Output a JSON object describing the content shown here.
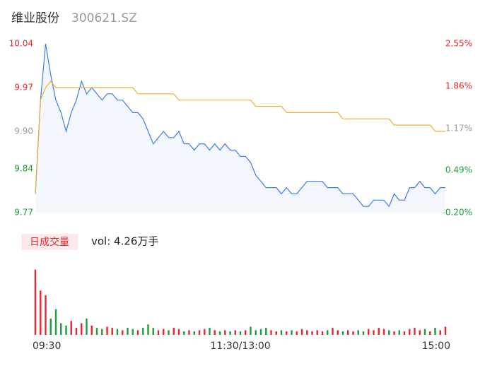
{
  "header": {
    "name": "维业股份",
    "code": "300621.SZ"
  },
  "chart_data": {
    "type": "intraday",
    "x": [
      0,
      3,
      6,
      9,
      12,
      15,
      18,
      21,
      24,
      27,
      30,
      33,
      36,
      39,
      42,
      45,
      48,
      51,
      54,
      57,
      60,
      63,
      66,
      69,
      72,
      75,
      78,
      81,
      84,
      87,
      90,
      93,
      96,
      99,
      102,
      105,
      108,
      111,
      114,
      117,
      120,
      123,
      126,
      129,
      132,
      135,
      138,
      141,
      144,
      147,
      150,
      153,
      156,
      159,
      162,
      165,
      168,
      171,
      174,
      177,
      180,
      183,
      186,
      189,
      192,
      195,
      198,
      201,
      204,
      207,
      210,
      213,
      216,
      219,
      222,
      225,
      228,
      231,
      234,
      237,
      240
    ],
    "xlim": [
      0,
      240
    ],
    "xticks": [
      {
        "value": 0,
        "label": "09:30"
      },
      {
        "value": 120,
        "label": "11:30/13:00"
      },
      {
        "value": 240,
        "label": "15:00"
      }
    ],
    "ylim": [
      9.77,
      10.04
    ],
    "yticks": [
      9.77,
      9.84,
      {
        "value": 9.9,
        "label": "9.90"
      },
      9.97,
      10.04
    ],
    "y2lim": [
      -0.2,
      2.55
    ],
    "y2ticks": [
      {
        "value": -0.2,
        "label": "-0.20%"
      },
      {
        "value": 0.49,
        "label": "0.49%"
      },
      {
        "value": 1.17,
        "label": "1.17%"
      },
      {
        "value": 1.86,
        "label": "1.86%"
      },
      {
        "value": 2.55,
        "label": "2.55%"
      }
    ],
    "price": {
      "color": "#3a7fe0",
      "values": [
        9.8,
        9.95,
        10.04,
        9.99,
        9.95,
        9.93,
        9.9,
        9.93,
        9.95,
        9.98,
        9.96,
        9.97,
        9.96,
        9.95,
        9.96,
        9.96,
        9.95,
        9.95,
        9.94,
        9.93,
        9.93,
        9.92,
        9.9,
        9.88,
        9.89,
        9.9,
        9.89,
        9.89,
        9.9,
        9.88,
        9.88,
        9.87,
        9.88,
        9.88,
        9.87,
        9.88,
        9.87,
        9.88,
        9.87,
        9.87,
        9.86,
        9.86,
        9.85,
        9.83,
        9.82,
        9.81,
        9.81,
        9.81,
        9.8,
        9.81,
        9.8,
        9.8,
        9.81,
        9.82,
        9.82,
        9.82,
        9.82,
        9.81,
        9.81,
        9.81,
        9.8,
        9.8,
        9.8,
        9.79,
        9.78,
        9.78,
        9.79,
        9.79,
        9.79,
        9.78,
        9.8,
        9.79,
        9.79,
        9.81,
        9.81,
        9.82,
        9.81,
        9.81,
        9.8,
        9.81,
        9.81
      ]
    },
    "average": {
      "color": "#f0b030",
      "values": [
        9.8,
        9.95,
        9.97,
        9.98,
        9.97,
        9.97,
        9.97,
        9.97,
        9.97,
        9.97,
        9.97,
        9.97,
        9.97,
        9.97,
        9.97,
        9.97,
        9.97,
        9.97,
        9.97,
        9.97,
        9.96,
        9.96,
        9.96,
        9.96,
        9.96,
        9.96,
        9.96,
        9.96,
        9.95,
        9.95,
        9.95,
        9.95,
        9.95,
        9.95,
        9.95,
        9.95,
        9.95,
        9.95,
        9.95,
        9.95,
        9.95,
        9.95,
        9.95,
        9.94,
        9.94,
        9.94,
        9.94,
        9.94,
        9.94,
        9.93,
        9.93,
        9.93,
        9.93,
        9.93,
        9.93,
        9.93,
        9.93,
        9.93,
        9.93,
        9.93,
        9.92,
        9.92,
        9.92,
        9.92,
        9.92,
        9.92,
        9.92,
        9.92,
        9.92,
        9.92,
        9.91,
        9.91,
        9.91,
        9.91,
        9.91,
        9.91,
        9.91,
        9.91,
        9.9,
        9.9,
        9.9
      ]
    },
    "up_color": "#e8262c",
    "down_color": "#1a9e3a",
    "flat_color": "#999999",
    "volume": {
      "title": "日成交量",
      "summary": "vol: 4.26万手",
      "ylim": [
        0,
        3000
      ],
      "values": [
        2800,
        1900,
        1700,
        700,
        1100,
        500,
        400,
        600,
        300,
        500,
        700,
        400,
        300,
        250,
        350,
        300,
        250,
        200,
        300,
        250,
        200,
        300,
        450,
        300,
        200,
        250,
        200,
        300,
        250,
        150,
        200,
        150,
        200,
        250,
        300,
        200,
        150,
        200,
        150,
        200,
        150,
        200,
        350,
        200,
        250,
        300,
        200,
        150,
        200,
        150,
        200,
        150,
        250,
        200,
        150,
        200,
        150,
        200,
        300,
        200,
        150,
        200,
        150,
        200,
        150,
        250,
        200,
        300,
        250,
        200,
        150,
        200,
        150,
        250,
        300,
        200,
        250,
        150,
        300,
        200,
        350
      ]
    }
  }
}
